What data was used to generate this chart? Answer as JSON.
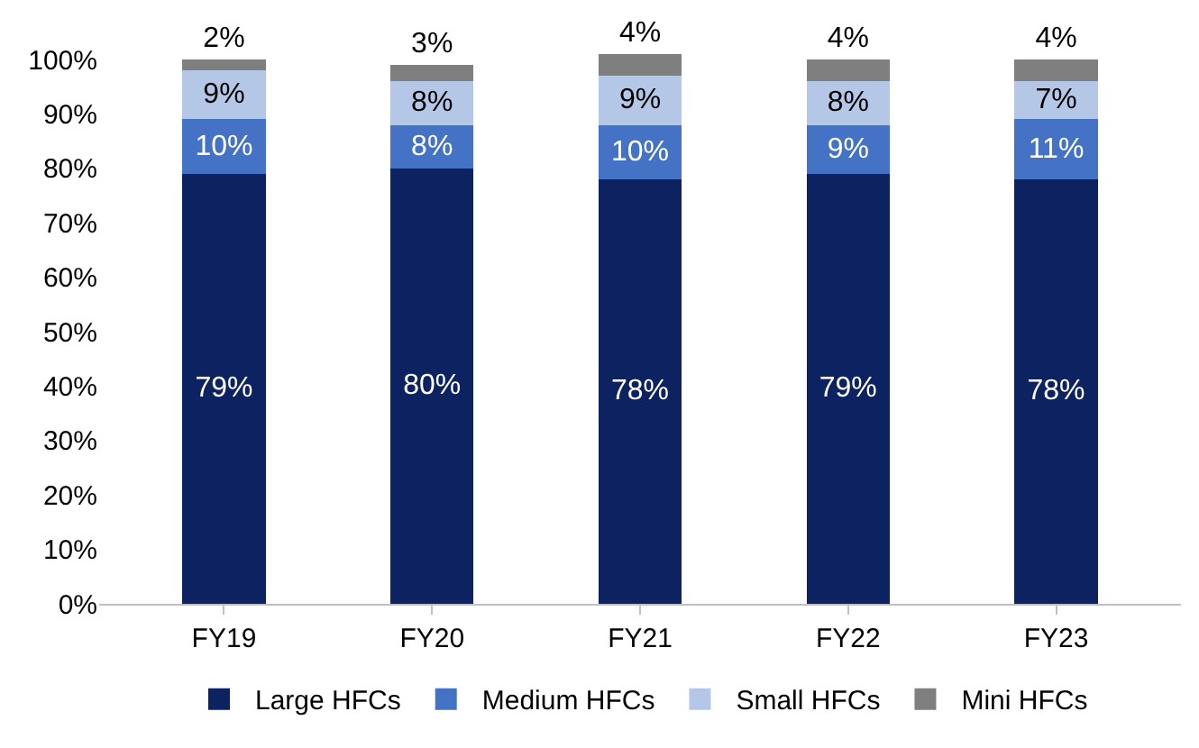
{
  "chart_data": {
    "type": "bar",
    "stacked": true,
    "categories": [
      "FY19",
      "FY20",
      "FY21",
      "FY22",
      "FY23"
    ],
    "series": [
      {
        "name": "Large HFCs",
        "color": "#0d2361",
        "values": [
          79,
          80,
          78,
          79,
          78
        ],
        "value_labels": [
          "79%",
          "80%",
          "78%",
          "79%",
          "78%"
        ]
      },
      {
        "name": "Medium HFCs",
        "color": "#4472c4",
        "values": [
          10,
          8,
          10,
          9,
          11
        ],
        "value_labels": [
          "10%",
          "8%",
          "10%",
          "9%",
          "11%"
        ]
      },
      {
        "name": "Small HFCs",
        "color": "#b4c7e7",
        "values": [
          9,
          8,
          9,
          8,
          7
        ],
        "value_labels": [
          "9%",
          "8%",
          "9%",
          "8%",
          "7%"
        ]
      },
      {
        "name": "Mini HFCs",
        "color": "#7f7f7f",
        "values": [
          2,
          3,
          4,
          4,
          4
        ],
        "value_labels": [
          "2%",
          "3%",
          "4%",
          "4%",
          "4%"
        ]
      }
    ],
    "ylim": [
      0,
      101
    ],
    "yticks": [
      {
        "value": 0,
        "label": "0%"
      },
      {
        "value": 10,
        "label": "10%"
      },
      {
        "value": 20,
        "label": "20%"
      },
      {
        "value": 30,
        "label": "30%"
      },
      {
        "value": 40,
        "label": "40%"
      },
      {
        "value": 50,
        "label": "50%"
      },
      {
        "value": 60,
        "label": "60%"
      },
      {
        "value": 70,
        "label": "70%"
      },
      {
        "value": 80,
        "label": "80%"
      },
      {
        "value": 90,
        "label": "90%"
      },
      {
        "value": 100,
        "label": "100%"
      }
    ],
    "legend": "bottom"
  }
}
